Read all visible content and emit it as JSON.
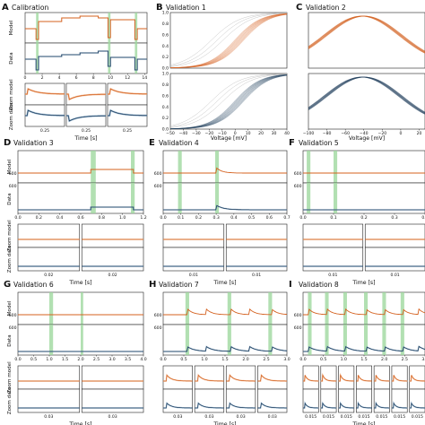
{
  "colors": {
    "model": "#d4601e",
    "data": "#1f3d5c",
    "data_light": "#7fa6c8",
    "model_light": "#f0b48a",
    "stim": "#9fd89f",
    "ref_gray": "#b9b9b9"
  },
  "panels": [
    {
      "id": "A",
      "title": "Calibration",
      "row1_label": "Model",
      "row2_label": "Data",
      "zoom_labels": [
        "Zoom model",
        "Zoom data"
      ],
      "x_ticks": [
        "0",
        "2",
        "4",
        "6",
        "8",
        "10",
        "12",
        "14"
      ],
      "zoom_ticks": [
        "0.25",
        "0.25",
        "0.25"
      ],
      "xlabel": "Time [s]"
    },
    {
      "id": "B",
      "title": "Validation 1",
      "y_ticks": [
        "0.0",
        "0.2",
        "0.4",
        "0.6",
        "0.8",
        "1.0"
      ],
      "x_ticks": [
        "−50",
        "−40",
        "−30",
        "−20",
        "−10",
        "0",
        "10",
        "20",
        "30",
        "40"
      ],
      "xlabel": "Voltage [mV]"
    },
    {
      "id": "C",
      "title": "Validation 2",
      "x_ticks": [
        "−100",
        "−80",
        "−60",
        "−40",
        "−20",
        "0",
        "20"
      ],
      "xlabel": "Voltage [mV]"
    },
    {
      "id": "D",
      "title": "Validation 3",
      "row1_label": "Model",
      "row2_label": "Data",
      "zoom_labels": [
        "Zoom model",
        "Zoom data"
      ],
      "ytick": "600",
      "x_ticks": [
        "0.0",
        "0.2",
        "0.4",
        "0.6",
        "0.8",
        "1.0",
        "1.2"
      ],
      "zoom_ticks": [
        "0.02",
        "0.02"
      ],
      "xlabel": "Time [s]"
    },
    {
      "id": "E",
      "title": "Validation 4",
      "ytick": "600",
      "x_ticks": [
        "0.0",
        "0.1",
        "0.2",
        "0.3",
        "0.4",
        "0.5",
        "0.6",
        "0.7"
      ],
      "zoom_ticks": [
        "0.01",
        "0.01"
      ],
      "xlabel": "Time [s]"
    },
    {
      "id": "F",
      "title": "Validation 5",
      "ytick": "600",
      "x_ticks": [
        "0.0",
        "0.1",
        "0.2",
        "0.3",
        "0.4"
      ],
      "zoom_ticks": [
        "0.01",
        "0.01"
      ],
      "xlabel": "Time [s]"
    },
    {
      "id": "G",
      "title": "Validation 6",
      "row1_label": "Model",
      "row2_label": "Data",
      "zoom_labels": [
        "Zoom model",
        "Zoom data"
      ],
      "ytick": "600",
      "x_ticks": [
        "0.0",
        "0.5",
        "1.0",
        "1.5",
        "2.0",
        "2.5",
        "3.0",
        "3.5",
        "4.0"
      ],
      "zoom_ticks": [
        "0.03",
        "0.03"
      ],
      "xlabel": "Time [s]"
    },
    {
      "id": "H",
      "title": "Validation 7",
      "ytick": "600",
      "x_ticks": [
        "0.0",
        "0.5",
        "1.0",
        "1.5",
        "2.0",
        "2.5",
        "3.0"
      ],
      "zoom_ticks": [
        "0.03",
        "0.03",
        "0.03",
        "0.03"
      ],
      "xlabel": "Time [s]"
    },
    {
      "id": "I",
      "title": "Validation 8",
      "ytick": "600",
      "x_ticks": [
        "0.0",
        "0.5",
        "1.0",
        "1.5",
        "2.0",
        "2.5",
        "3.0"
      ],
      "zoom_ticks": [
        "0.015",
        "0.015",
        "0.015",
        "0.015",
        "0.015",
        "0.015",
        "0.015"
      ],
      "xlabel": "Time [s]"
    }
  ]
}
